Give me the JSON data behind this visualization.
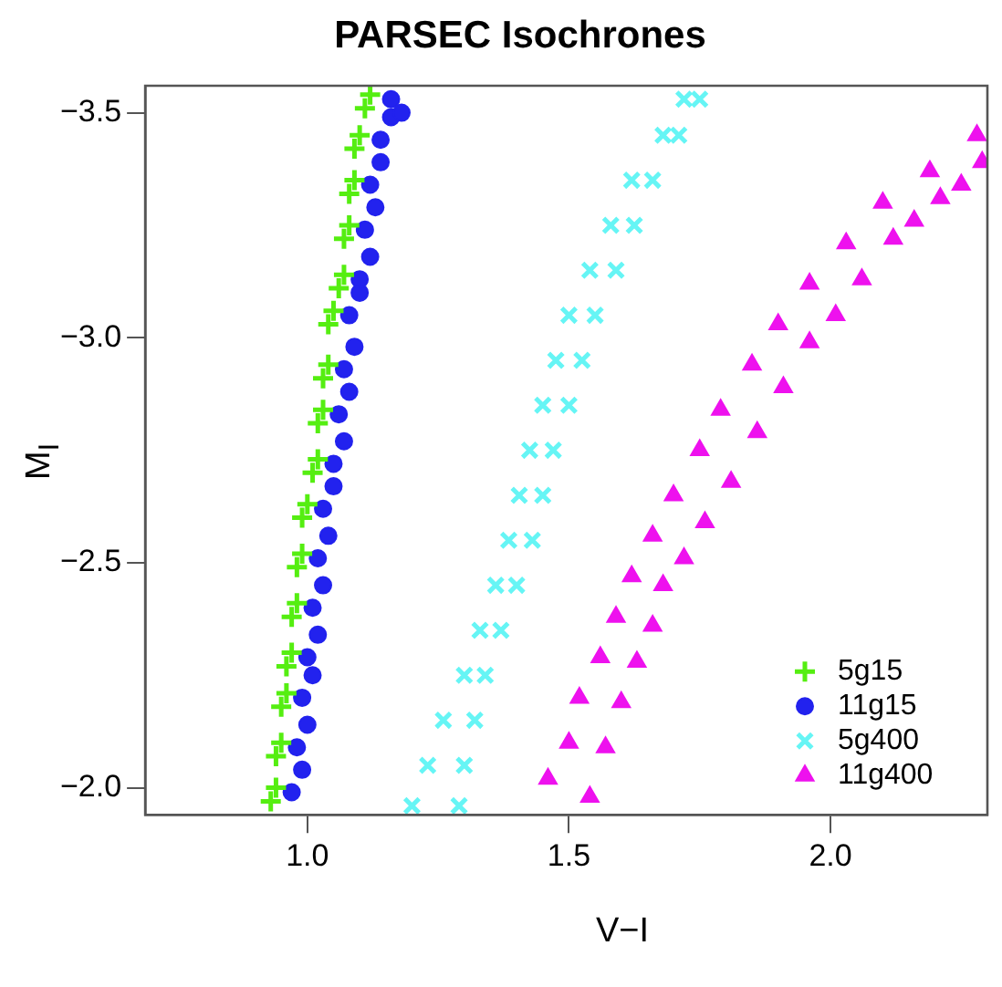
{
  "chart_data": {
    "type": "scatter",
    "title": "PARSEC Isochrones",
    "xlabel": "V−I",
    "ylabel": "M$_{I}$",
    "xlim": [
      0.69,
      2.3
    ],
    "ylim": [
      -1.94,
      -3.56
    ],
    "xticks": [
      {
        "value": 1.0,
        "label": "1.0"
      },
      {
        "value": 1.5,
        "label": "1.5"
      },
      {
        "value": 2.0,
        "label": "2.0"
      }
    ],
    "yticks": [
      {
        "value": -2.0,
        "label": "−2.0"
      },
      {
        "value": -2.5,
        "label": "−2.5"
      },
      {
        "value": -3.0,
        "label": "−3.0"
      },
      {
        "value": -3.5,
        "label": "−3.5"
      }
    ],
    "grid": false,
    "legend": "bottom right",
    "series": [
      {
        "name": "5g15",
        "color": "#55ee11",
        "marker": "cross",
        "x": [
          0.94,
          0.93,
          0.95,
          0.94,
          0.96,
          0.95,
          0.97,
          0.96,
          0.98,
          0.97,
          0.99,
          0.98,
          1.0,
          0.99,
          1.02,
          1.01,
          1.03,
          1.02,
          1.04,
          1.03,
          1.05,
          1.04,
          1.07,
          1.06,
          1.08,
          1.07,
          1.09,
          1.08,
          1.1,
          1.09,
          1.12,
          1.11
        ],
        "values": [
          -2.0,
          -1.97,
          -2.1,
          -2.07,
          -2.21,
          -2.18,
          -2.3,
          -2.27,
          -2.41,
          -2.38,
          -2.52,
          -2.49,
          -2.63,
          -2.6,
          -2.73,
          -2.7,
          -2.84,
          -2.81,
          -2.94,
          -2.91,
          -3.06,
          -3.03,
          -3.14,
          -3.11,
          -3.25,
          -3.22,
          -3.35,
          -3.32,
          -3.45,
          -3.42,
          -3.54,
          -3.51
        ]
      },
      {
        "name": "11g15",
        "color": "#2222ee",
        "marker": "circle",
        "x": [
          0.97,
          0.99,
          0.98,
          1.0,
          0.99,
          1.01,
          1.0,
          1.02,
          1.01,
          1.03,
          1.02,
          1.04,
          1.03,
          1.05,
          1.05,
          1.07,
          1.06,
          1.08,
          1.07,
          1.09,
          1.08,
          1.1,
          1.1,
          1.12,
          1.11,
          1.13,
          1.12,
          1.14,
          1.14,
          1.16,
          1.16,
          1.18
        ],
        "values": [
          -1.99,
          -2.04,
          -2.09,
          -2.14,
          -2.2,
          -2.25,
          -2.29,
          -2.34,
          -2.4,
          -2.45,
          -2.51,
          -2.56,
          -2.62,
          -2.67,
          -2.72,
          -2.77,
          -2.83,
          -2.88,
          -2.93,
          -2.98,
          -3.05,
          -3.1,
          -3.13,
          -3.18,
          -3.24,
          -3.29,
          -3.34,
          -3.39,
          -3.44,
          -3.49,
          -3.53,
          -3.5
        ]
      },
      {
        "name": "5g400",
        "color": "#66f5f5",
        "marker": "x",
        "x": [
          1.2,
          1.23,
          1.26,
          1.3,
          1.33,
          1.36,
          1.385,
          1.405,
          1.425,
          1.45,
          1.475,
          1.5,
          1.54,
          1.58,
          1.62,
          1.68,
          1.72,
          1.29,
          1.3,
          1.32,
          1.34,
          1.37,
          1.4,
          1.43,
          1.45,
          1.47,
          1.5,
          1.525,
          1.55,
          1.59,
          1.625,
          1.66,
          1.71,
          1.75
        ],
        "values": [
          -1.96,
          -2.05,
          -2.15,
          -2.25,
          -2.35,
          -2.45,
          -2.55,
          -2.65,
          -2.75,
          -2.85,
          -2.95,
          -3.05,
          -3.15,
          -3.25,
          -3.35,
          -3.45,
          -3.53,
          -1.96,
          -2.05,
          -2.15,
          -2.25,
          -2.35,
          -2.45,
          -2.55,
          -2.65,
          -2.75,
          -2.85,
          -2.95,
          -3.05,
          -3.15,
          -3.25,
          -3.35,
          -3.45,
          -3.53
        ]
      },
      {
        "name": "11g400",
        "color": "#ee11ee",
        "marker": "triangle",
        "x": [
          1.46,
          1.5,
          1.52,
          1.56,
          1.59,
          1.62,
          1.66,
          1.7,
          1.75,
          1.79,
          1.85,
          1.9,
          1.96,
          2.03,
          2.1,
          2.19,
          2.28,
          1.54,
          1.57,
          1.6,
          1.63,
          1.66,
          1.68,
          1.72,
          1.76,
          1.81,
          1.86,
          1.91,
          1.96,
          2.01,
          2.06,
          2.12,
          2.16,
          2.21,
          2.25,
          2.29
        ],
        "values": [
          -2.02,
          -2.1,
          -2.2,
          -2.29,
          -2.38,
          -2.47,
          -2.56,
          -2.65,
          -2.75,
          -2.84,
          -2.94,
          -3.03,
          -3.12,
          -3.21,
          -3.3,
          -3.37,
          -3.45,
          -1.98,
          -2.09,
          -2.19,
          -2.28,
          -2.36,
          -2.45,
          -2.51,
          -2.59,
          -2.68,
          -2.79,
          -2.89,
          -2.99,
          -3.05,
          -3.13,
          -3.22,
          -3.26,
          -3.31,
          -3.34,
          -3.39
        ]
      }
    ]
  }
}
